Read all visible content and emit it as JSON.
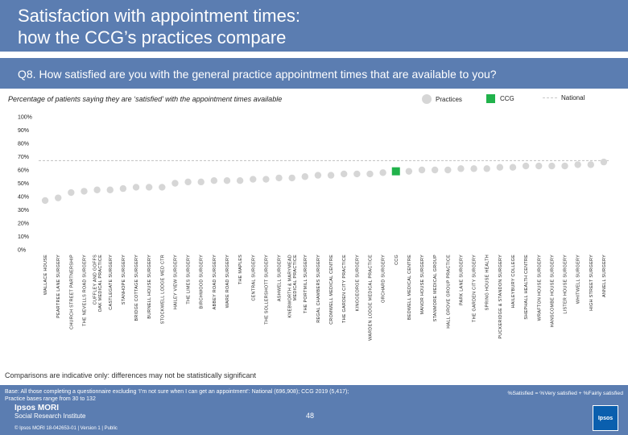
{
  "header": {
    "title_line1": "Satisfaction with appointment times:",
    "title_line2": "how the CCG’s practices compare"
  },
  "question": "Q8. How satisfied are you with the general practice appointment times that are available to you?",
  "subtitle": "Percentage of patients saying they are ‘satisfied’ with the appointment times available",
  "legend": {
    "practices": "Practices",
    "ccg": "CCG",
    "national": "National"
  },
  "colors": {
    "practice": "#d6d6d6",
    "ccg": "#21b24b",
    "national_line": "#c8c8c8",
    "brand": "#5b7db1"
  },
  "chart_data": {
    "type": "scatter",
    "title": "Percentage of patients saying they are ‘satisfied’ with the appointment times available",
    "ylim": [
      0,
      100
    ],
    "yticks": [
      "0%",
      "10%",
      "20%",
      "30%",
      "40%",
      "50%",
      "60%",
      "70%",
      "80%",
      "90%",
      "100%"
    ],
    "national": 67,
    "categories": [
      "WALLACE HOUSE",
      "PEARTREE LANE SURGERY",
      "CHURCH STREET PARTNERSHIP",
      "THE NEVELLS ROAD SURGERY",
      "CUFFLEY AND GOFFS OAK MEDICAL PRACTICE",
      "CASTLEGATE SURGERY",
      "STANHOPE SURGERY",
      "BRIDGE COTTAGE SURGERY",
      "BURNELL HOUSE SURGERY",
      "STOCKWELL LODGE MED CTR",
      "HAILEY VIEW SURGERY",
      "THE LIMES SURGERY",
      "BIRCHWOOD SURGERY",
      "ABBEY ROAD SURGERY",
      "WARE ROAD SURGERY",
      "THE MAPLES",
      "CENTRAL SURGERY",
      "THE SOLLERSHOTT SURGERY",
      "ASHWELL SURGERY",
      "KNEBWORTH & MARYMEAD MEDICAL PRACTICE",
      "THE PORTMILL SURGERY",
      "REGAL CHAMBERS SURGERY",
      "CROMWELL MEDICAL CENTRE",
      "THE GARDEN CITY PRACTICE",
      "KINGGEORGE SURGERY",
      "WARDEN LODGE MEDICAL PRACTICE",
      "ORCHARD SURGERY",
      "CCG",
      "BEDWELL MEDICAL CENTRE",
      "MANOR HOUSE SURGERY",
      "STANMORE MEDICAL GROUP",
      "HALL GROVE GROUP PRACTICE",
      "PARK LANE SURGERY",
      "THE GARDEN CITY SURGERY",
      "SPRING HOUSE HEALTH",
      "PUCKERIDGE & STANDON SURGERY",
      "HAILEYBURY COLLEGE",
      "SHEPHALL HEALTH CENTRE",
      "WRAFTON HOUSE SURGERY",
      "HANSCOMBE HOUSE SURGERY",
      "LISTER HOUSE SURGERY",
      "WHITWELL SURGERY",
      "HIGH STREET SURGERY",
      "ANNELL SURGERY"
    ],
    "values": [
      37,
      39,
      43,
      44,
      45,
      45,
      46,
      47,
      47,
      47,
      50,
      51,
      51,
      52,
      52,
      52,
      53,
      53,
      54,
      54,
      55,
      56,
      56,
      57,
      57,
      57,
      58,
      59,
      59,
      60,
      60,
      60,
      61,
      61,
      61,
      62,
      62,
      63,
      63,
      63,
      63,
      64,
      64,
      66
    ],
    "ccg_index": 27
  },
  "note": "Comparisons are indicative only: differences may not be statistically significant",
  "footer": {
    "base_line1": "Base: All those completing a questionnaire excluding ‘I’m not sure when I can get an appointment’: National (696,908); CCG 2019 (5,417);",
    "base_line2": "Practice bases range from 30 to 132",
    "definition": "%Satisfied = %Very satisfied + %Fairly satisfied",
    "org_name": "Ipsos MORI",
    "org_sub": "Social Research Institute",
    "copyright": "© Ipsos MORI     18-042653-01 | Version 1 | Public",
    "page_number": "48",
    "nhs_label": "Ipsos"
  }
}
